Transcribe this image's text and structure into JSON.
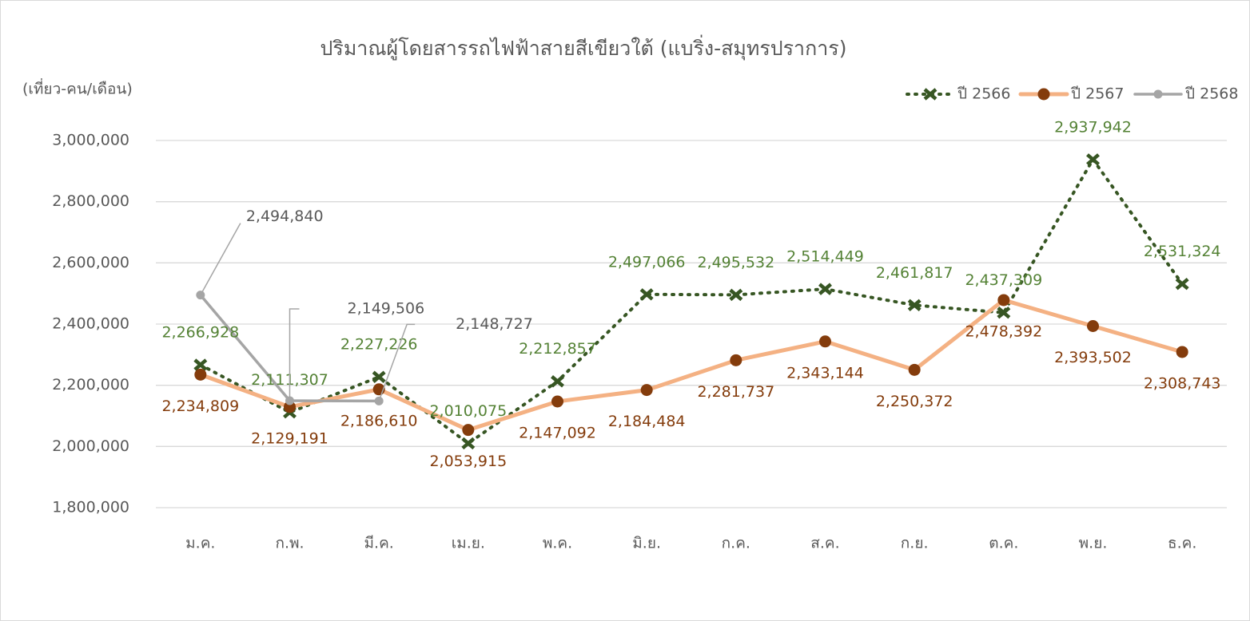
{
  "chart_data": {
    "type": "line",
    "title": "ปริมาณผู้โดยสารรถไฟฟ้าสายสีเขียวใต้ (แบริ่ง-สมุทรปราการ)",
    "y_label": "(เที่ยว-คน/เดือน)",
    "categories": [
      "ม.ค.",
      "ก.พ.",
      "มี.ค.",
      "เม.ย.",
      "พ.ค.",
      "มิ.ย.",
      "ก.ค.",
      "ส.ค.",
      "ก.ย.",
      "ต.ค.",
      "พ.ย.",
      "ธ.ค."
    ],
    "series": [
      {
        "name": "ปี 2566",
        "color": "#375623",
        "label_color": "#548235",
        "values": [
          2266928,
          2111307,
          2227226,
          2010075,
          2212857,
          2497066,
          2495532,
          2514449,
          2461817,
          2437309,
          2937942,
          2531324
        ],
        "value_labels": [
          "2,266,928",
          "2,111,307",
          "2,227,226",
          "2,010,075",
          "2,212,857",
          "2,497,066",
          "2,495,532",
          "2,514,449",
          "2,461,817",
          "2,437,309",
          "2,937,942",
          "2,531,324"
        ]
      },
      {
        "name": "ปี 2567",
        "color": "#f4b183",
        "label_color": "#843c0c",
        "values": [
          2234809,
          2129191,
          2186610,
          2053915,
          2147092,
          2184484,
          2281737,
          2343144,
          2250372,
          2478392,
          2393502,
          2308743
        ],
        "value_labels": [
          "2,234,809",
          "2,129,191",
          "2,186,610",
          "2,053,915",
          "2,147,092",
          "2,184,484",
          "2,281,737",
          "2,343,144",
          "2,250,372",
          "2,478,392",
          "2,393,502",
          "2,308,743"
        ]
      },
      {
        "name": "ปี 2568",
        "color": "#a5a5a5",
        "label_color": "#595959",
        "values": [
          2494840,
          2149506,
          2148727,
          null,
          null,
          null,
          null,
          null,
          null,
          null,
          null,
          null
        ],
        "value_labels": [
          "2,494,840",
          "2,149,506",
          "2,148,727",
          null,
          null,
          null,
          null,
          null,
          null,
          null,
          null,
          null
        ]
      }
    ],
    "ylim": [
      1800000,
      3000000
    ],
    "yticks": [
      {
        "value": 1800000,
        "label": "1,800,000"
      },
      {
        "value": 2000000,
        "label": "2,000,000"
      },
      {
        "value": 2200000,
        "label": "2,200,000"
      },
      {
        "value": 2400000,
        "label": "2,400,000"
      },
      {
        "value": 2600000,
        "label": "2,600,000"
      },
      {
        "value": 2800000,
        "label": "2,800,000"
      },
      {
        "value": 3000000,
        "label": "3,000,000"
      }
    ],
    "grid": true,
    "legend": "top-right"
  }
}
